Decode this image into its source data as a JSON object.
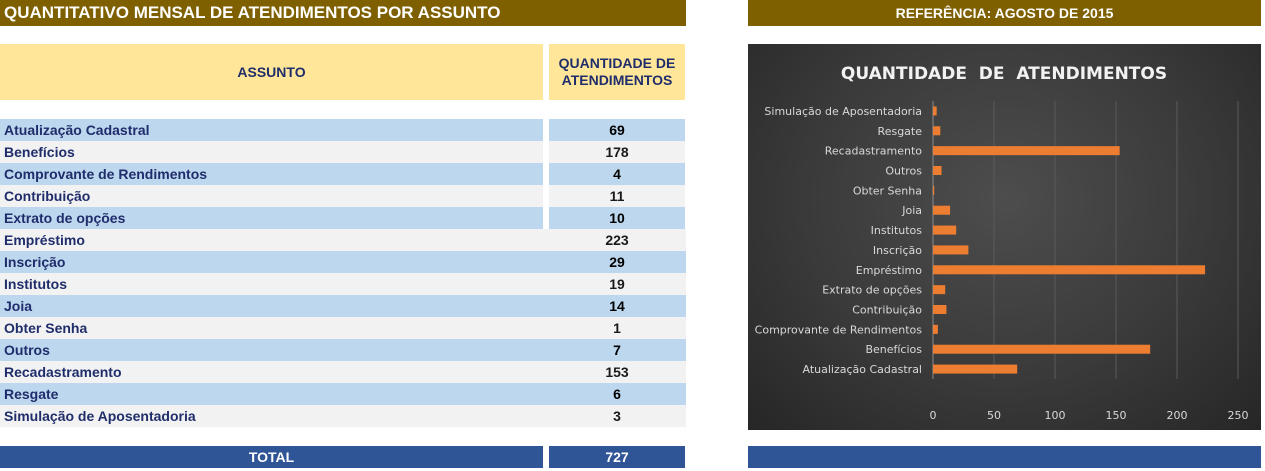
{
  "titles": {
    "main": "QUANTITATIVO MENSAL DE ATENDIMENTOS POR ASSUNTO",
    "reference": "REFERÊNCIA: AGOSTO DE 2015"
  },
  "table": {
    "header_subject": "ASSUNTO",
    "header_quantity_line1": "QUANTIDADE DE",
    "header_quantity_line2": "ATENDIMENTOS",
    "rows": [
      {
        "subject": "Atualização Cadastral",
        "quantity": "69"
      },
      {
        "subject": "Benefícios",
        "quantity": "178"
      },
      {
        "subject": "Comprovante de Rendimentos",
        "quantity": "4"
      },
      {
        "subject": "Contribuição",
        "quantity": "11"
      },
      {
        "subject": "Extrato de opções",
        "quantity": "10"
      },
      {
        "subject": "Empréstimo",
        "quantity": "223"
      },
      {
        "subject": "Inscrição",
        "quantity": "29"
      },
      {
        "subject": "Institutos",
        "quantity": "19"
      },
      {
        "subject": "Joia",
        "quantity": "14"
      },
      {
        "subject": "Obter Senha",
        "quantity": "1"
      },
      {
        "subject": "Outros",
        "quantity": "7"
      },
      {
        "subject": "Recadastramento",
        "quantity": "153"
      },
      {
        "subject": "Resgate",
        "quantity": "6"
      },
      {
        "subject": "Simulação de Aposentadoria",
        "quantity": "3"
      }
    ],
    "total_label": "TOTAL",
    "total_value": "727"
  },
  "colors": {
    "title_bar": "#7f6000",
    "header_fill": "#ffe699",
    "row_blue": "#bdd7ee",
    "row_grey": "#f2f2f2",
    "total_fill": "#2f5597",
    "bar": "#ed7d31"
  },
  "chart_data": {
    "type": "bar",
    "orientation": "horizontal",
    "title": "QUANTIDADE  DE  ATENDIMENTOS",
    "categories": [
      "Atualização Cadastral",
      "Benefícios",
      "Comprovante de Rendimentos",
      "Contribuição",
      "Extrato de opções",
      "Empréstimo",
      "Inscrição",
      "Institutos",
      "Joia",
      "Obter Senha",
      "Outros",
      "Recadastramento",
      "Resgate",
      "Simulação de Aposentadoria"
    ],
    "values": [
      69,
      178,
      4,
      11,
      10,
      223,
      29,
      19,
      14,
      1,
      7,
      153,
      6,
      3
    ],
    "xlim": [
      0,
      250
    ],
    "xticks": [
      "0",
      "50",
      "100",
      "150",
      "200",
      "250"
    ],
    "grid": true,
    "legend": "none"
  }
}
